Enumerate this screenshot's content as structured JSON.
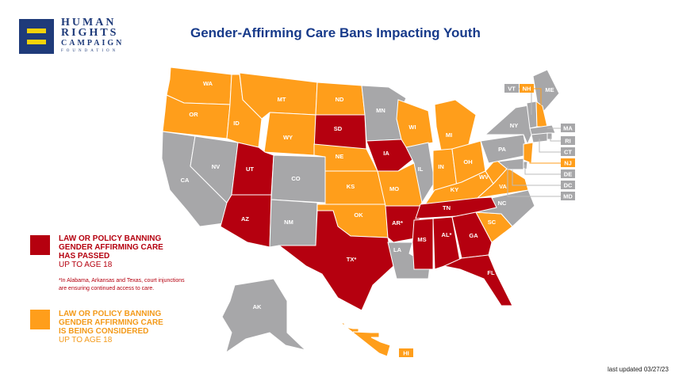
{
  "logo": {
    "line1": "HUMAN",
    "line2": "RIGHTS",
    "line3": "CAMPAIGN",
    "line4": "FOUNDATION"
  },
  "title": "Gender-Affirming Care Bans Impacting Youth",
  "colors": {
    "passed": "#b5000f",
    "considered": "#ff9e1b",
    "none": "#a7a7a9",
    "title": "#173a8a"
  },
  "legend": {
    "passed": {
      "head1": "LAW OR POLICY BANNING",
      "head2": "GENDER AFFIRMING CARE",
      "head3": "HAS PASSED",
      "sub": "UP TO AGE 18"
    },
    "note1": "*In Alabama, Arkansas and Texas, court injunctions",
    "note2": "are ensuring continued access to care.",
    "considered": {
      "head1": "LAW OR POLICY BANNING",
      "head2": "GENDER AFFIRMING CARE",
      "head3": "IS BEING CONSIDERED",
      "sub": "UP TO AGE 18"
    }
  },
  "states": [
    {
      "abbr": "WA",
      "label": "WA",
      "status": "considered"
    },
    {
      "abbr": "OR",
      "label": "OR",
      "status": "considered"
    },
    {
      "abbr": "CA",
      "label": "CA",
      "status": "none"
    },
    {
      "abbr": "NV",
      "label": "NV",
      "status": "none"
    },
    {
      "abbr": "ID",
      "label": "ID",
      "status": "considered"
    },
    {
      "abbr": "MT",
      "label": "MT",
      "status": "considered"
    },
    {
      "abbr": "WY",
      "label": "WY",
      "status": "considered"
    },
    {
      "abbr": "UT",
      "label": "UT",
      "status": "passed"
    },
    {
      "abbr": "AZ",
      "label": "AZ",
      "status": "passed"
    },
    {
      "abbr": "CO",
      "label": "CO",
      "status": "none"
    },
    {
      "abbr": "NM",
      "label": "NM",
      "status": "none"
    },
    {
      "abbr": "ND",
      "label": "ND",
      "status": "considered"
    },
    {
      "abbr": "SD",
      "label": "SD",
      "status": "passed"
    },
    {
      "abbr": "NE",
      "label": "NE",
      "status": "considered"
    },
    {
      "abbr": "KS",
      "label": "KS",
      "status": "considered"
    },
    {
      "abbr": "OK",
      "label": "OK",
      "status": "considered"
    },
    {
      "abbr": "TX",
      "label": "TX*",
      "status": "passed"
    },
    {
      "abbr": "MN",
      "label": "MN",
      "status": "none"
    },
    {
      "abbr": "IA",
      "label": "IA",
      "status": "passed"
    },
    {
      "abbr": "MO",
      "label": "MO",
      "status": "considered"
    },
    {
      "abbr": "AR",
      "label": "AR*",
      "status": "passed"
    },
    {
      "abbr": "LA",
      "label": "LA",
      "status": "none"
    },
    {
      "abbr": "WI",
      "label": "WI",
      "status": "considered"
    },
    {
      "abbr": "IL",
      "label": "IL",
      "status": "none"
    },
    {
      "abbr": "MI",
      "label": "MI",
      "status": "considered"
    },
    {
      "abbr": "IN",
      "label": "IN",
      "status": "considered"
    },
    {
      "abbr": "OH",
      "label": "OH",
      "status": "considered"
    },
    {
      "abbr": "KY",
      "label": "KY",
      "status": "considered"
    },
    {
      "abbr": "TN",
      "label": "TN",
      "status": "passed"
    },
    {
      "abbr": "MS",
      "label": "MS",
      "status": "passed"
    },
    {
      "abbr": "AL",
      "label": "AL*",
      "status": "passed"
    },
    {
      "abbr": "GA",
      "label": "GA",
      "status": "passed"
    },
    {
      "abbr": "FL",
      "label": "FL",
      "status": "passed"
    },
    {
      "abbr": "SC",
      "label": "SC",
      "status": "considered"
    },
    {
      "abbr": "NC",
      "label": "NC",
      "status": "none"
    },
    {
      "abbr": "VA",
      "label": "VA",
      "status": "considered"
    },
    {
      "abbr": "WV",
      "label": "WV",
      "status": "considered"
    },
    {
      "abbr": "PA",
      "label": "PA",
      "status": "none"
    },
    {
      "abbr": "NY",
      "label": "NY",
      "status": "none"
    },
    {
      "abbr": "ME",
      "label": "ME",
      "status": "none"
    },
    {
      "abbr": "VT",
      "label": "VT",
      "status": "none"
    },
    {
      "abbr": "NH",
      "label": "NH",
      "status": "considered"
    },
    {
      "abbr": "MA",
      "label": "MA",
      "status": "none"
    },
    {
      "abbr": "RI",
      "label": "RI",
      "status": "none"
    },
    {
      "abbr": "CT",
      "label": "CT",
      "status": "none"
    },
    {
      "abbr": "NJ",
      "label": "NJ",
      "status": "considered"
    },
    {
      "abbr": "DE",
      "label": "DE",
      "status": "none"
    },
    {
      "abbr": "DC",
      "label": "DC",
      "status": "none"
    },
    {
      "abbr": "MD",
      "label": "MD",
      "status": "none"
    },
    {
      "abbr": "AK",
      "label": "AK",
      "status": "none"
    },
    {
      "abbr": "HI",
      "label": "HI",
      "status": "considered"
    }
  ],
  "footer": {
    "updated": "last updated 03/27/23"
  }
}
